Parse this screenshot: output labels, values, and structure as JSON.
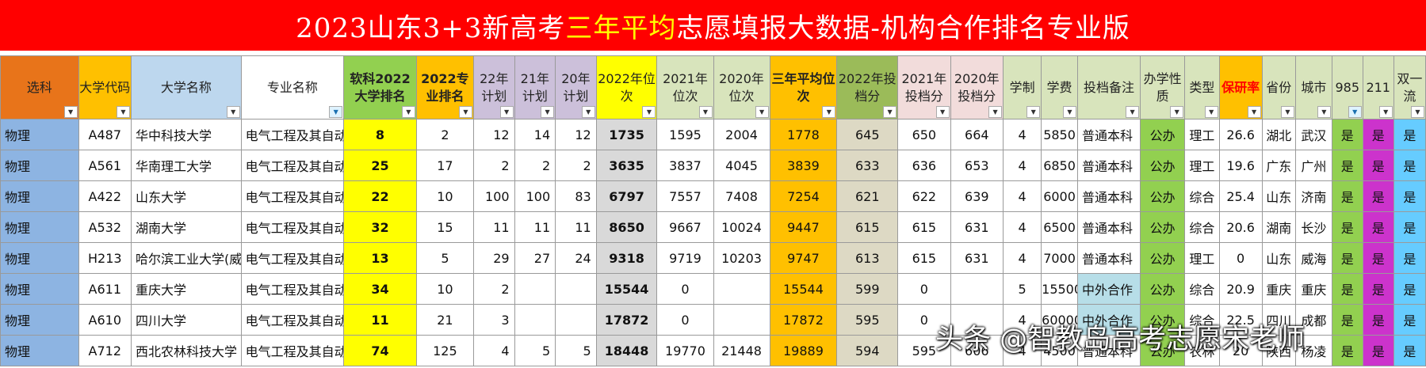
{
  "title": {
    "pre": "2023山东3+3新高考",
    "highlight": "三年平均",
    "post": "志愿填报大数据-机构合作排名专业版"
  },
  "colors": {
    "banner": "#ff0000",
    "highlight_text": "#ffff00",
    "filter_active": "#1a6fb0"
  },
  "columns": [
    {
      "label": "选科",
      "bg": "#e8741a"
    },
    {
      "label": "大学代码",
      "bg": "#ffc000"
    },
    {
      "label": "大学名称",
      "bg": "#bdd7ee"
    },
    {
      "label": "专业名称",
      "bg": "#ffffff"
    },
    {
      "label": "软科2022大学排名",
      "bg": "#92d050"
    },
    {
      "label": "2022专业排名",
      "bg": "#ffc000"
    },
    {
      "label": "22年计划",
      "bg": "#ccc0da"
    },
    {
      "label": "21年计划",
      "bg": "#ccc0da"
    },
    {
      "label": "20年计划",
      "bg": "#ccc0da"
    },
    {
      "label": "2022年位次",
      "bg": "#ffff00"
    },
    {
      "label": "2021年位次",
      "bg": "#d8e4bc"
    },
    {
      "label": "2020年位次",
      "bg": "#d8e4bc"
    },
    {
      "label": "三年平均位次",
      "bg": "#ffc000"
    },
    {
      "label": "2022年投档分",
      "bg": "#9bbb59"
    },
    {
      "label": "2021年投档分",
      "bg": "#f2dcdb"
    },
    {
      "label": "2020年投档分",
      "bg": "#f2dcdb"
    },
    {
      "label": "学制",
      "bg": "#d8e4bc"
    },
    {
      "label": "学费",
      "bg": "#d8e4bc"
    },
    {
      "label": "投档备注",
      "bg": "#d8e4bc"
    },
    {
      "label": "办学性质",
      "bg": "#d8e4bc"
    },
    {
      "label": "类型",
      "bg": "#d8e4bc"
    },
    {
      "label": "保研率",
      "bg": "#ffc000"
    },
    {
      "label": "省份",
      "bg": "#d8e4bc"
    },
    {
      "label": "城市",
      "bg": "#d8e4bc"
    },
    {
      "label": "985",
      "bg": "#d8e4bc"
    },
    {
      "label": "211",
      "bg": "#d8e4bc"
    },
    {
      "label": "双一流",
      "bg": "#d8e4bc"
    }
  ],
  "rows": [
    [
      "物理",
      "A487",
      "华中科技大学",
      "电气工程及其自动",
      "8",
      "2",
      "12",
      "14",
      "12",
      "1735",
      "1595",
      "2004",
      "1778",
      "645",
      "650",
      "664",
      "4",
      "5850",
      "普通本科",
      "公办",
      "理工",
      "26.6",
      "湖北",
      "武汉",
      "是",
      "是",
      "是"
    ],
    [
      "物理",
      "A561",
      "华南理工大学",
      "电气工程及其自动",
      "25",
      "17",
      "2",
      "2",
      "2",
      "3635",
      "3837",
      "4045",
      "3839",
      "633",
      "636",
      "653",
      "4",
      "6850",
      "普通本科",
      "公办",
      "理工",
      "19.6",
      "广东",
      "广州",
      "是",
      "是",
      "是"
    ],
    [
      "物理",
      "A422",
      "山东大学",
      "电气工程及其自动",
      "22",
      "10",
      "100",
      "100",
      "83",
      "6797",
      "7557",
      "7408",
      "7254",
      "621",
      "622",
      "639",
      "4",
      "6000",
      "普通本科",
      "公办",
      "综合",
      "25.4",
      "山东",
      "济南",
      "是",
      "是",
      "是"
    ],
    [
      "物理",
      "A532",
      "湖南大学",
      "电气工程及其自动",
      "32",
      "15",
      "11",
      "11",
      "11",
      "8650",
      "9667",
      "10024",
      "9447",
      "615",
      "615",
      "631",
      "4",
      "6500",
      "普通本科",
      "公办",
      "综合",
      "20.6",
      "湖南",
      "长沙",
      "是",
      "是",
      "是"
    ],
    [
      "物理",
      "H213",
      "哈尔滨工业大学(威",
      "电气工程及其自动",
      "13",
      "5",
      "29",
      "27",
      "24",
      "9318",
      "9719",
      "10203",
      "9747",
      "613",
      "615",
      "631",
      "4",
      "7000",
      "普通本科",
      "公办",
      "理工",
      "0",
      "山东",
      "威海",
      "是",
      "是",
      "是"
    ],
    [
      "物理",
      "A611",
      "重庆大学",
      "电气工程及其自动",
      "34",
      "10",
      "2",
      "",
      "",
      "15544",
      "0",
      "",
      "15544",
      "599",
      "0",
      "",
      "5",
      "15500",
      "中外合作",
      "公办",
      "综合",
      "20.9",
      "重庆",
      "重庆",
      "是",
      "是",
      "是"
    ],
    [
      "物理",
      "A610",
      "四川大学",
      "电气工程及其自动",
      "11",
      "21",
      "3",
      "",
      "",
      "17872",
      "0",
      "",
      "17872",
      "595",
      "0",
      "",
      "4",
      "60000",
      "中外合作",
      "公办",
      "综合",
      "22.5",
      "四川",
      "成都",
      "是",
      "是",
      "是"
    ],
    [
      "物理",
      "A712",
      "西北农林科技大学",
      "电气工程及其自动",
      "74",
      "125",
      "4",
      "5",
      "5",
      "18448",
      "19770",
      "21448",
      "19889",
      "594",
      "595",
      "606",
      "4",
      "4500",
      "普通本科",
      "公办",
      "农林",
      "20",
      "陕西",
      "杨凌",
      "是",
      "是",
      "是"
    ]
  ],
  "watermark": "头条 @智教岛高考志愿宋老师"
}
